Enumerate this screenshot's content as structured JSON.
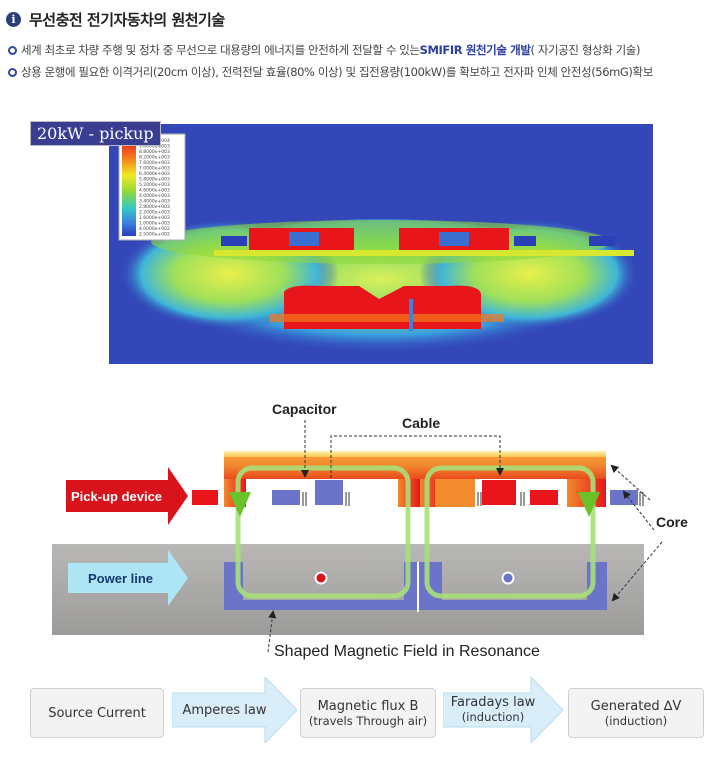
{
  "header": {
    "title": "무선충전 전기자동차의 원천기술",
    "bullets": [
      {
        "before": "세계 최초로 차량 주행 및 정차 중 무선으로 대용량의 에너지를 안전하게 전달할 수 있는 ",
        "highlight": "SMIFIR 원천기술 개발",
        "after": "( 자기공진 형상화 기술)"
      },
      {
        "before": "상용 운행에 필요한 이격거리(20cm 이상), 전력전달 효율(80% 이상) 및 집전용량(100kW)를 확보하고 전자파 인체 안전성(56mG)확보",
        "highlight": "",
        "after": ""
      }
    ]
  },
  "simulation": {
    "label": "20kW - pickup",
    "legend_values": [
      "1.0000e+004",
      "9.4000e+003",
      "8.8000e+003",
      "8.2000e+003",
      "7.6000e+003",
      "7.0000e+003",
      "6.4000e+003",
      "5.8000e+003",
      "5.2000e+003",
      "4.6000e+003",
      "4.0000e+003",
      "3.4000e+003",
      "2.8000e+003",
      "2.2000e+003",
      "1.6000e+003",
      "1.0000e+003",
      "4.0000e+002",
      "2.5000e+002"
    ]
  },
  "diagram": {
    "labels": {
      "capacitor": "Capacitor",
      "cable": "Cable",
      "core": "Core",
      "pickup_device": "Pick-up device",
      "power_line": "Power line",
      "field": "Shaped Magnetic Field in Resonance"
    }
  },
  "flow": {
    "source_current": "Source Current",
    "amperes_law": "Amperes law",
    "magnetic_flux_main": "Magnetic flux B",
    "magnetic_flux_sub": "(travels Through air)",
    "faradays_main": "Faradays law",
    "faradays_sub": "(induction)",
    "generated_main": "Generated ∆V",
    "generated_sub": "(induction)"
  },
  "colors": {
    "accent": "#2a3fa0",
    "red_arrow": "#d8131b",
    "blue_arrow": "#aee5f5",
    "core": "#6b74c8",
    "ground": "#a9a8a6"
  }
}
